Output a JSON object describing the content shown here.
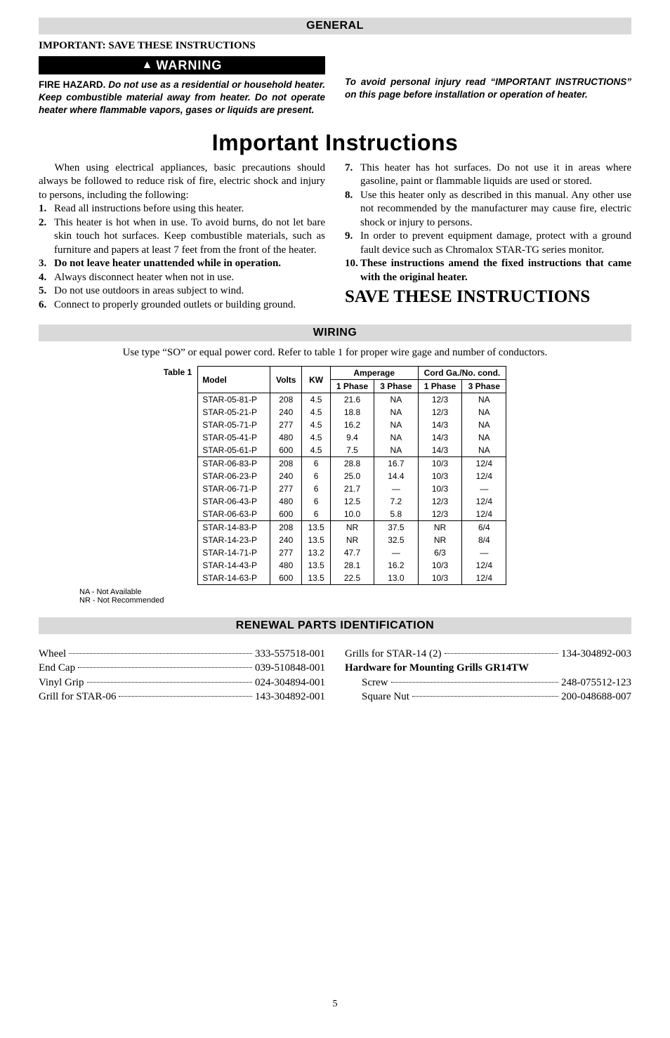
{
  "page_number": "5",
  "general": {
    "header": "GENERAL",
    "important_save": "IMPORTANT: SAVE THESE INSTRUCTIONS",
    "warning_label": "WARNING",
    "fire_hazard_lead": "FIRE HAZARD.",
    "fire_hazard_body": " Do not use as a residential or household heater. Keep combustible material away from heater. Do not operate heater where flammable vapors, gases or liquids are present.",
    "avoid_injury": "To avoid personal injury read “IMPORTANT INSTRUCTIONS” on this page before installation or operation of heater."
  },
  "important": {
    "title": "Important Instructions",
    "intro": "When using electrical appliances, basic precautions should always be followed to reduce risk of fire, electric shock and injury to persons, including the following:",
    "left": [
      {
        "text": "Read all instructions before using this heater.",
        "bold": false
      },
      {
        "text": "This heater is hot when in use. To avoid burns, do not let bare skin touch hot surfaces. Keep combustible materials, such as furniture and papers at least 7 feet from the front of the heater.",
        "bold": false
      },
      {
        "text": "Do not leave heater unattended while in operation.",
        "bold": true
      },
      {
        "text": "Always disconnect heater when not in use.",
        "bold": false
      },
      {
        "text": "Do not use outdoors in areas subject to wind.",
        "bold": false
      },
      {
        "text": "Connect to properly grounded outlets or building ground.",
        "bold": false
      }
    ],
    "right": [
      {
        "text": "This heater has hot surfaces. Do not use it in areas where gasoline, paint or flammable liquids are used or stored.",
        "bold": false
      },
      {
        "text": "Use this heater only as described in this manual. Any other use not recommended by the manufacturer may cause fire, electric shock or injury to persons.",
        "bold": false
      },
      {
        "text": "In order to prevent equipment damage, protect with a ground fault device such as Chromalox STAR-TG series monitor.",
        "bold": false
      },
      {
        "text": "These instructions amend the fixed instructions that came with the original heater.",
        "bold": true
      }
    ],
    "save": "SAVE THESE INSTRUCTIONS"
  },
  "wiring": {
    "header": "WIRING",
    "intro": "Use type “SO” or equal power cord. Refer to table 1 for proper wire gage and number of conductors.",
    "table_label": "Table 1",
    "head": {
      "model": "Model",
      "volts": "Volts",
      "kw": "KW",
      "amps": "Amperage",
      "cord": "Cord Ga./No. cond.",
      "ph1": "1 Phase",
      "ph3": "3 Phase"
    },
    "groups": [
      [
        {
          "model": "STAR-05-81-P",
          "volts": "208",
          "kw": "4.5",
          "a1": "21.6",
          "a3": "NA",
          "c1": "12/3",
          "c3": "NA"
        },
        {
          "model": "STAR-05-21-P",
          "volts": "240",
          "kw": "4.5",
          "a1": "18.8",
          "a3": "NA",
          "c1": "12/3",
          "c3": "NA"
        },
        {
          "model": "STAR-05-71-P",
          "volts": "277",
          "kw": "4.5",
          "a1": "16.2",
          "a3": "NA",
          "c1": "14/3",
          "c3": "NA"
        },
        {
          "model": "STAR-05-41-P",
          "volts": "480",
          "kw": "4.5",
          "a1": "9.4",
          "a3": "NA",
          "c1": "14/3",
          "c3": "NA"
        },
        {
          "model": "STAR-05-61-P",
          "volts": "600",
          "kw": "4.5",
          "a1": "7.5",
          "a3": "NA",
          "c1": "14/3",
          "c3": "NA"
        }
      ],
      [
        {
          "model": "STAR-06-83-P",
          "volts": "208",
          "kw": "6",
          "a1": "28.8",
          "a3": "16.7",
          "c1": "10/3",
          "c3": "12/4"
        },
        {
          "model": "STAR-06-23-P",
          "volts": "240",
          "kw": "6",
          "a1": "25.0",
          "a3": "14.4",
          "c1": "10/3",
          "c3": "12/4"
        },
        {
          "model": "STAR-06-71-P",
          "volts": "277",
          "kw": "6",
          "a1": "21.7",
          "a3": "—",
          "c1": "10/3",
          "c3": "—"
        },
        {
          "model": "STAR-06-43-P",
          "volts": "480",
          "kw": "6",
          "a1": "12.5",
          "a3": "7.2",
          "c1": "12/3",
          "c3": "12/4"
        },
        {
          "model": "STAR-06-63-P",
          "volts": "600",
          "kw": "6",
          "a1": "10.0",
          "a3": "5.8",
          "c1": "12/3",
          "c3": "12/4"
        }
      ],
      [
        {
          "model": "STAR-14-83-P",
          "volts": "208",
          "kw": "13.5",
          "a1": "NR",
          "a3": "37.5",
          "c1": "NR",
          "c3": "6/4"
        },
        {
          "model": "STAR-14-23-P",
          "volts": "240",
          "kw": "13.5",
          "a1": "NR",
          "a3": "32.5",
          "c1": "NR",
          "c3": "8/4"
        },
        {
          "model": "STAR-14-71-P",
          "volts": "277",
          "kw": "13.2",
          "a1": "47.7",
          "a3": "—",
          "c1": "6/3",
          "c3": "—"
        },
        {
          "model": "STAR-14-43-P",
          "volts": "480",
          "kw": "13.5",
          "a1": "28.1",
          "a3": "16.2",
          "c1": "10/3",
          "c3": "12/4"
        },
        {
          "model": "STAR-14-63-P",
          "volts": "600",
          "kw": "13.5",
          "a1": "22.5",
          "a3": "13.0",
          "c1": "10/3",
          "c3": "12/4"
        }
      ]
    ],
    "note1": "NA - Not Available",
    "note2": "NR - Not Recommended"
  },
  "parts": {
    "header": "RENEWAL PARTS IDENTIFICATION",
    "left": [
      {
        "name": "Wheel",
        "num": "333-557518-001"
      },
      {
        "name": "End Cap",
        "num": "039-510848-001"
      },
      {
        "name": "Vinyl Grip",
        "num": "024-304894-001"
      },
      {
        "name": "Grill for STAR-06",
        "num": "143-304892-001"
      }
    ],
    "right": [
      {
        "name": "Grills for STAR-14 (2)",
        "num": "134-304892-003"
      },
      {
        "name": "Hardware for Mounting Grills GR14TW",
        "num": "",
        "bold": true,
        "nodots": true
      },
      {
        "name": "Screw",
        "num": "248-075512-123",
        "indent": true
      },
      {
        "name": "Square Nut",
        "num": "200-048688-007",
        "indent": true
      }
    ]
  }
}
